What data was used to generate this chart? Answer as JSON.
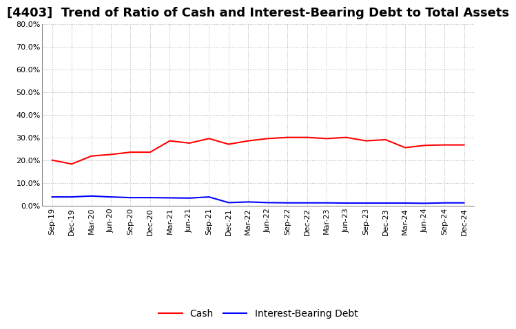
{
  "title": "[4403]  Trend of Ratio of Cash and Interest-Bearing Debt to Total Assets",
  "x_labels": [
    "Sep-19",
    "Dec-19",
    "Mar-20",
    "Jun-20",
    "Sep-20",
    "Dec-20",
    "Mar-21",
    "Jun-21",
    "Sep-21",
    "Dec-21",
    "Mar-22",
    "Jun-22",
    "Sep-22",
    "Dec-22",
    "Mar-23",
    "Jun-23",
    "Sep-23",
    "Dec-23",
    "Mar-24",
    "Jun-24",
    "Sep-24",
    "Dec-24"
  ],
  "cash": [
    0.2,
    0.183,
    0.218,
    0.225,
    0.235,
    0.235,
    0.285,
    0.275,
    0.295,
    0.27,
    0.285,
    0.295,
    0.3,
    0.3,
    0.295,
    0.3,
    0.285,
    0.29,
    0.255,
    0.265,
    0.267,
    0.267
  ],
  "interest_bearing_debt": [
    0.038,
    0.038,
    0.042,
    0.038,
    0.035,
    0.035,
    0.034,
    0.033,
    0.038,
    0.013,
    0.016,
    0.013,
    0.012,
    0.012,
    0.012,
    0.011,
    0.011,
    0.011,
    0.011,
    0.01,
    0.012,
    0.012
  ],
  "cash_color": "#ff0000",
  "debt_color": "#0000ff",
  "ylim": [
    0.0,
    0.8
  ],
  "yticks": [
    0.0,
    0.1,
    0.2,
    0.3,
    0.4,
    0.5,
    0.6,
    0.7,
    0.8
  ],
  "background_color": "#ffffff",
  "grid_color": "#aaaaaa",
  "title_fontsize": 13,
  "tick_fontsize": 8,
  "legend_fontsize": 10
}
